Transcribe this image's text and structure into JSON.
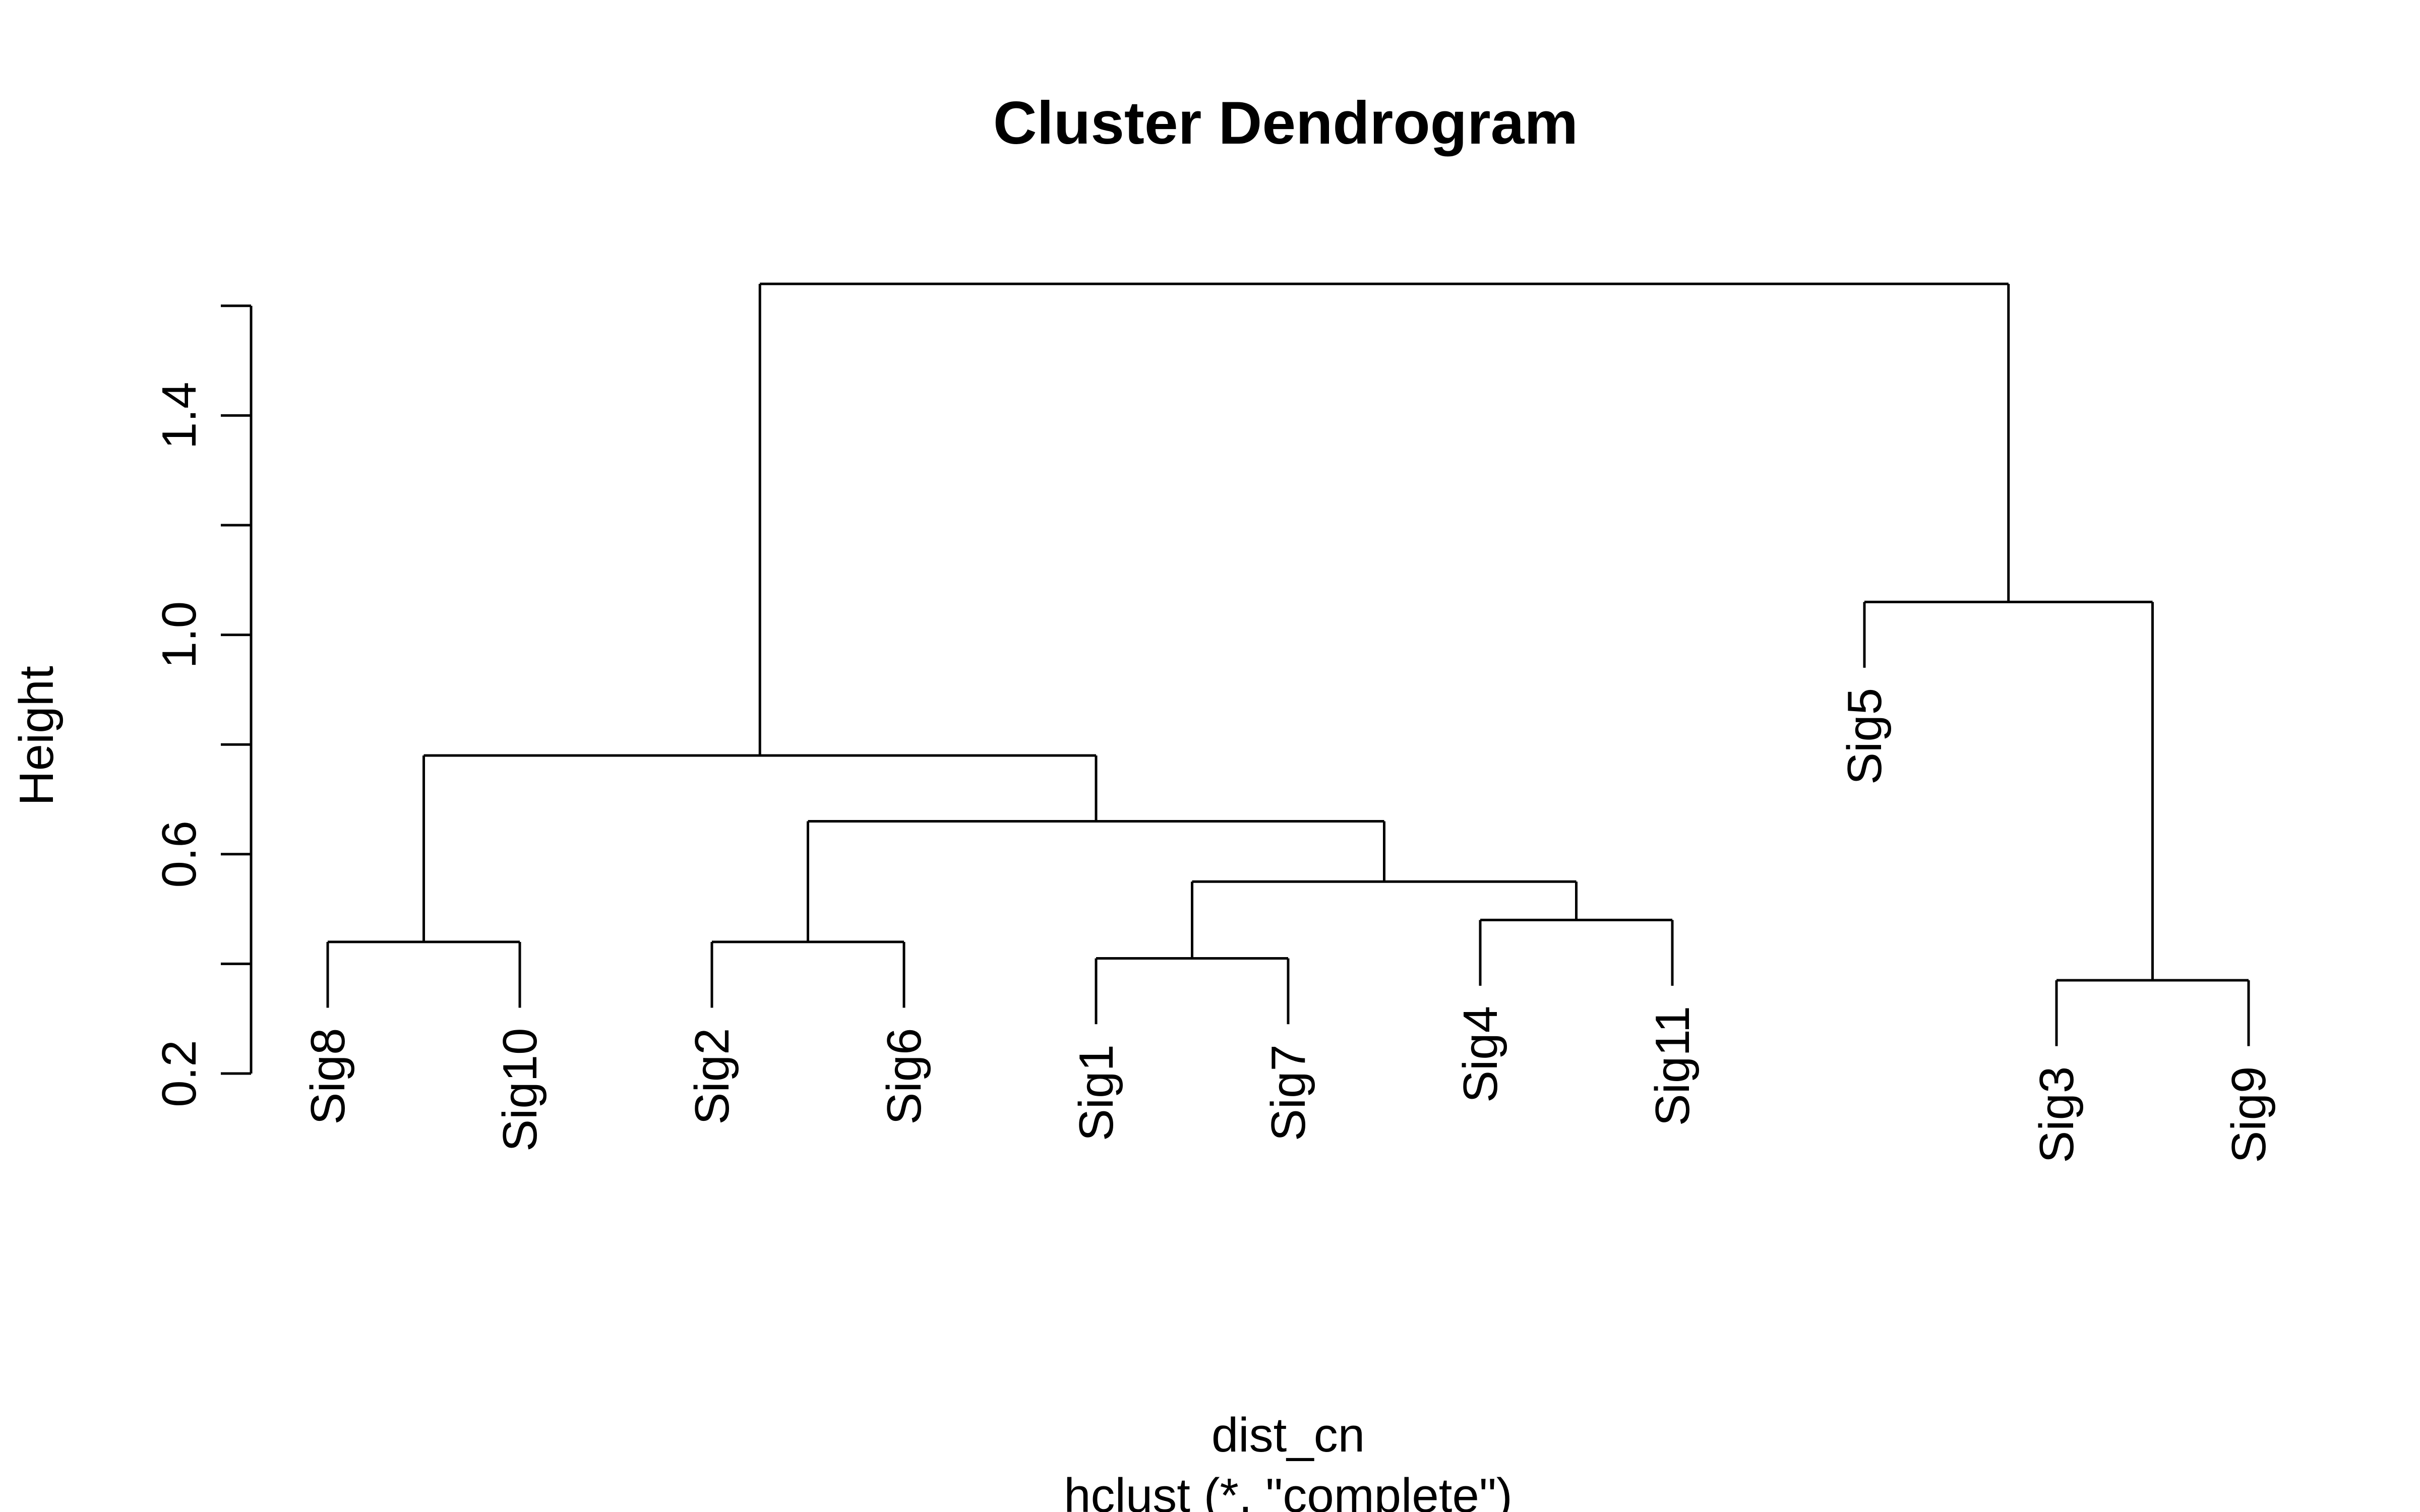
{
  "chart_data": {
    "type": "dendrogram",
    "title": "Cluster Dendrogram",
    "ylabel": "Height",
    "xlabel": "dist_cn",
    "sub": "hclust (*, \"complete\")",
    "method": "complete",
    "yaxis": {
      "range": [
        0.2,
        1.7
      ],
      "ticks": [
        0.2,
        0.4,
        0.6,
        0.8,
        1.0,
        1.2,
        1.4,
        1.6
      ],
      "tick_labels": [
        "0.2",
        "",
        "0.6",
        "",
        "1.0",
        "",
        "1.4",
        ""
      ]
    },
    "leaves": [
      "Sig8",
      "Sig10",
      "Sig2",
      "Sig6",
      "Sig1",
      "Sig7",
      "Sig4",
      "Sig11",
      "Sig5",
      "Sig3",
      "Sig9"
    ],
    "merges": [
      {
        "left": "Sig3",
        "right": "Sig9",
        "height": 0.37
      },
      {
        "left": "Sig1",
        "right": "Sig7",
        "height": 0.41
      },
      {
        "left": "Sig8",
        "right": "Sig10",
        "height": 0.44
      },
      {
        "left": "Sig2",
        "right": "Sig6",
        "height": 0.44
      },
      {
        "left": "Sig4",
        "right": "Sig11",
        "height": 0.48
      },
      {
        "left": "Sig1+Sig7",
        "right": "Sig4+Sig11",
        "height": 0.55
      },
      {
        "left": "Sig2+Sig6",
        "right": "Sig1+Sig7+Sig4+Sig11",
        "height": 0.66
      },
      {
        "left": "Sig8+Sig10",
        "right": "Sig2+Sig6+Sig1+Sig7+Sig4+Sig11",
        "height": 0.78
      },
      {
        "left": "Sig5",
        "right": "Sig3+Sig9",
        "height": 1.06
      },
      {
        "left": "Sig8+Sig10+Sig2+Sig6+Sig1+Sig7+Sig4+Sig11",
        "right": "Sig5+Sig3+Sig9",
        "height": 1.64
      }
    ]
  }
}
